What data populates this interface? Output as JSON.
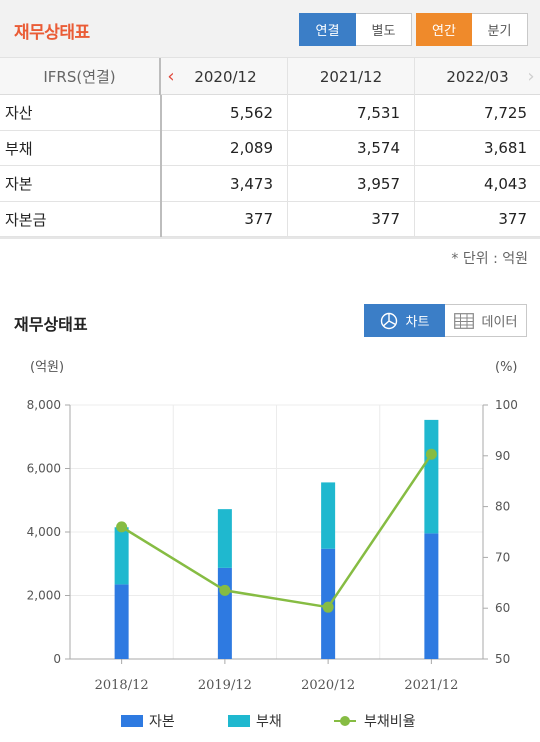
{
  "header": {
    "title": "재무상태표",
    "basis_options": [
      {
        "label": "연결",
        "active": true
      },
      {
        "label": "별도",
        "active": false
      }
    ],
    "period_options": [
      {
        "label": "연간",
        "active": true
      },
      {
        "label": "분기",
        "active": false
      }
    ]
  },
  "table": {
    "first_header": "IFRS(연결)",
    "columns": [
      "2020/12",
      "2021/12",
      "2022/03"
    ],
    "rows": [
      {
        "label": "자산",
        "values": [
          "5,562",
          "7,531",
          "7,725"
        ]
      },
      {
        "label": "부채",
        "values": [
          "2,089",
          "3,574",
          "3,681"
        ]
      },
      {
        "label": "자본",
        "values": [
          "3,473",
          "3,957",
          "4,043"
        ]
      },
      {
        "label": "자본금",
        "values": [
          "377",
          "377",
          "377"
        ]
      }
    ],
    "unit_note": "* 단위 : 억원"
  },
  "chart_section": {
    "title": "재무상태표",
    "view_chart_label": "차트",
    "view_data_label": "데이터"
  },
  "colors": {
    "equity": "#2e7ae1",
    "liabilities": "#1fb8cf",
    "ratio_line": "#86bc43",
    "active_blue": "#3b7ec7",
    "active_orange": "#ef8a2b",
    "title_orange": "#ea5c36"
  },
  "chart_data": {
    "type": "bar",
    "stacked": true,
    "categories": [
      "2018/12",
      "2019/12",
      "2020/12",
      "2021/12"
    ],
    "left_axis_unit": "(억원)",
    "right_axis_unit": "(%)",
    "ylim": [
      0,
      8000
    ],
    "y_ticks": [
      "0",
      "2,000",
      "4,000",
      "6,000",
      "8,000"
    ],
    "y2lim": [
      50,
      100
    ],
    "y2_ticks": [
      "50",
      "60",
      "70",
      "80",
      "90",
      "100"
    ],
    "grid": true,
    "legend_position": "bottom",
    "series": [
      {
        "name": "자본",
        "kind": "bar",
        "axis": "left",
        "values": [
          2350,
          2870,
          3473,
          3957
        ]
      },
      {
        "name": "부채",
        "kind": "bar",
        "axis": "left",
        "values": [
          1800,
          1850,
          2089,
          3574
        ]
      },
      {
        "name": "부채비율",
        "kind": "line",
        "axis": "right",
        "values": [
          76,
          63.5,
          60.2,
          90.3
        ]
      }
    ]
  }
}
